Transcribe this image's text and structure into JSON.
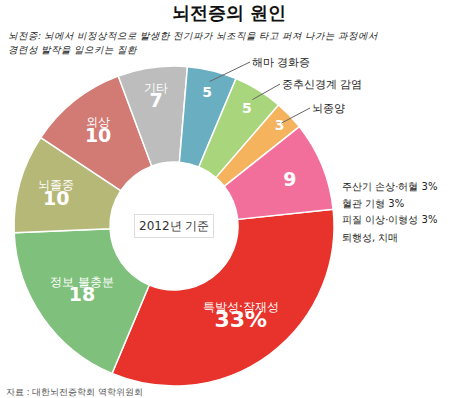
{
  "chart_data": {
    "type": "pie",
    "title": "뇌전증의 원인",
    "subtitle": [
      "뇌전증: 뇌에서 비정상적으로 발생한 전기파가 뇌조직을 타고 퍼져 나가는 과정에서",
      "경련성 발작을 일으키는 질환"
    ],
    "categories": [
      "특발성·잠재성",
      "정보 불충분",
      "뇌졸중",
      "외상",
      "기타",
      "해마 경화증",
      "중추신경계 감염",
      "뇌종양",
      null
    ],
    "values": [
      33,
      18,
      10,
      10,
      7,
      5,
      5,
      3,
      9
    ],
    "value_labels": [
      "33%",
      "18",
      "10",
      "10",
      "7",
      "5",
      "5",
      "3",
      "9"
    ],
    "colors": [
      "#e8322c",
      "#7fc07c",
      "#b6b878",
      "#d27b74",
      "#bdbdbd",
      "#6aaec2",
      "#a9d67c",
      "#f5b35e",
      "#f26f9b"
    ],
    "data_labels": true,
    "annotations": {
      "center": "2012년 기준",
      "breakdown": [
        "주산기 손상·허혈 3%",
        "혈관 기형 3%",
        "피질 이상·이형성 3%",
        "퇴행성, 치매"
      ],
      "source": "자료 : 대한뇌전증학회 역학위원회"
    }
  }
}
